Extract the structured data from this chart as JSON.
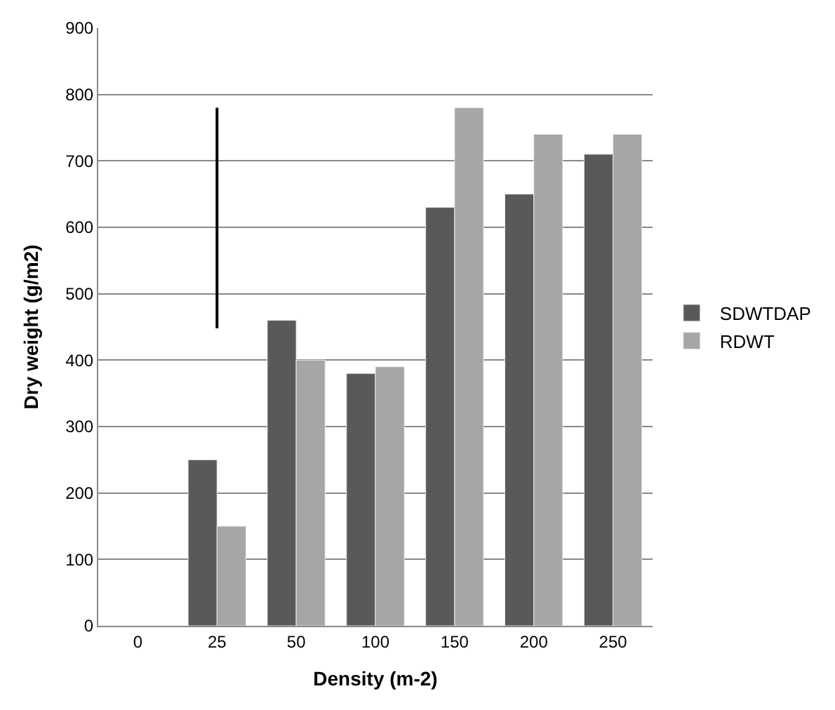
{
  "chart_data": {
    "type": "bar",
    "xlabel": "Density (m-2)",
    "ylabel": "Dry weight (g/m2)",
    "categories": [
      "0",
      "25",
      "50",
      "100",
      "150",
      "200",
      "250"
    ],
    "series": [
      {
        "name": "SDWTDAP",
        "color": "#595959",
        "values": [
          null,
          250,
          460,
          380,
          630,
          650,
          710
        ]
      },
      {
        "name": "RDWT",
        "color": "#a6a6a6",
        "values": [
          null,
          150,
          400,
          390,
          780,
          740,
          740
        ]
      },
      {
        "type": "line",
        "color": "#000000",
        "x": [
          "25",
          "25"
        ],
        "values": [
          448,
          780
        ]
      }
    ],
    "ylim": [
      0,
      900
    ],
    "yticks": [
      0,
      100,
      200,
      300,
      400,
      500,
      600,
      700,
      800,
      900
    ],
    "grid": "y",
    "legend": "right"
  }
}
